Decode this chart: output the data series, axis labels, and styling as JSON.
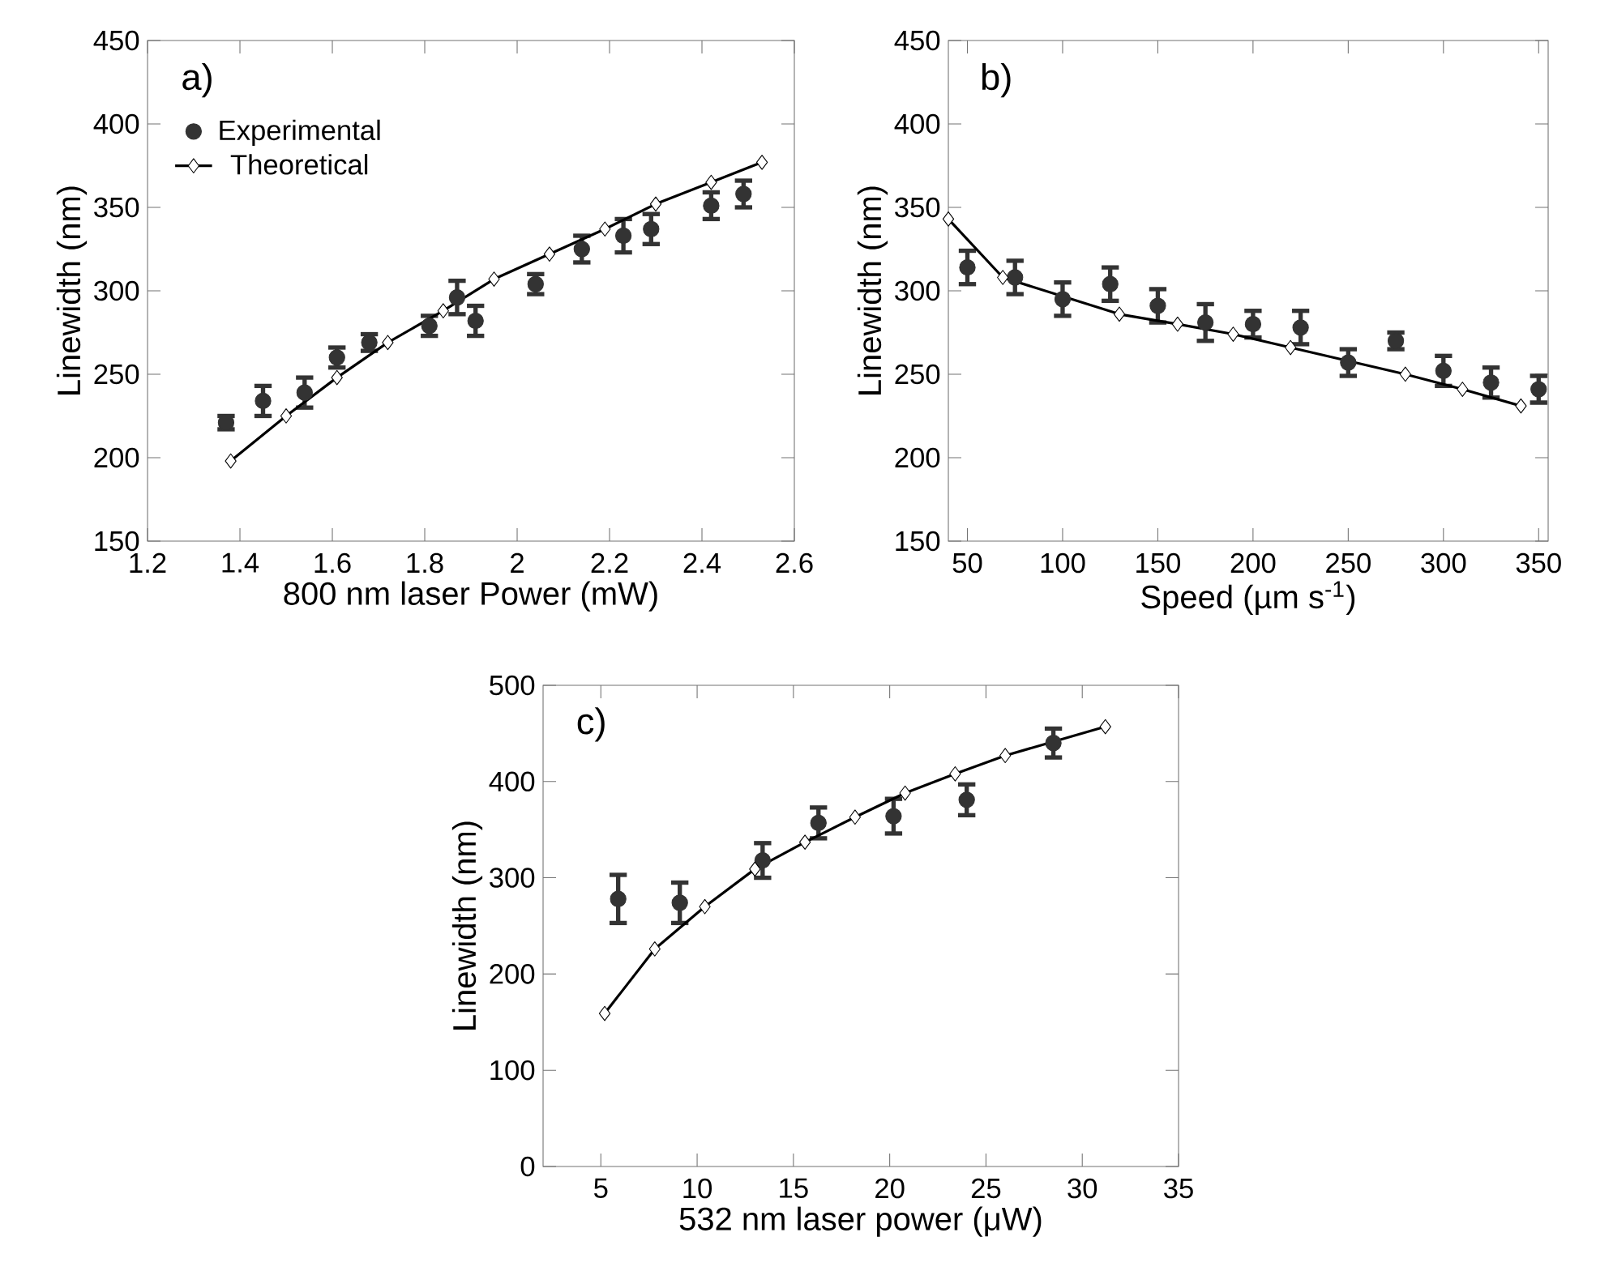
{
  "chart_data": [
    {
      "type": "scatter",
      "xlabel": "800 nm laser Power (mW)",
      "ylabel": "Linewidth (nm)",
      "annotations": [
        "a)"
      ],
      "xlim": [
        1.2,
        2.6
      ],
      "ylim": [
        150,
        450
      ],
      "xticks": [
        1.2,
        1.4,
        1.6,
        1.8,
        2,
        2.2,
        2.4,
        2.6
      ],
      "yticks": [
        150,
        200,
        250,
        300,
        350,
        400,
        450
      ],
      "legend": "top left",
      "series": [
        {
          "name": "Experimental",
          "marker": "circle",
          "color": "#333333",
          "x": [
            1.37,
            1.45,
            1.54,
            1.61,
            1.68,
            1.81,
            1.87,
            1.91,
            2.04,
            2.14,
            2.23,
            2.29,
            2.42,
            2.49
          ],
          "values": [
            221,
            234,
            239,
            260,
            269,
            279,
            296,
            282,
            304,
            325,
            333,
            337,
            351,
            358
          ],
          "errors": [
            4,
            9,
            9,
            6,
            5,
            6,
            10,
            9,
            6,
            8,
            10,
            9,
            8,
            8
          ]
        },
        {
          "name": "Theoretical",
          "type": "line",
          "marker": "diamond",
          "color": "#000000",
          "x": [
            1.38,
            1.5,
            1.61,
            1.72,
            1.84,
            1.95,
            2.07,
            2.19,
            2.3,
            2.42,
            2.53
          ],
          "values": [
            198,
            225,
            248,
            269,
            288,
            307,
            322,
            337,
            352,
            365,
            377
          ]
        }
      ]
    },
    {
      "type": "scatter",
      "xlabel": "Speed (µm s$^{-1}$)",
      "ylabel": "Linewidth (nm)",
      "annotations": [
        "b)"
      ],
      "xlim": [
        40,
        355
      ],
      "ylim": [
        150,
        450
      ],
      "xticks": [
        50,
        100,
        150,
        200,
        250,
        300,
        350
      ],
      "yticks": [
        150,
        200,
        250,
        300,
        350,
        400,
        450
      ],
      "series": [
        {
          "marker": "circle",
          "color": "#333333",
          "x": [
            50,
            75,
            100,
            125,
            150,
            175,
            200,
            225,
            250,
            275,
            300,
            325,
            350
          ],
          "values": [
            314,
            308,
            295,
            304,
            291,
            281,
            280,
            278,
            257,
            270,
            252,
            245,
            241
          ],
          "errors": [
            10,
            10,
            10,
            10,
            10,
            11,
            8,
            10,
            8,
            5,
            9,
            9,
            8
          ]
        },
        {
          "type": "line",
          "marker": "diamond",
          "color": "#000000",
          "x": [
            40,
            68.6,
            129.8,
            160.4,
            189.6,
            219.7,
            280,
            310,
            340.7
          ],
          "values": [
            343,
            308,
            286,
            280,
            274,
            266,
            250,
            241,
            231
          ]
        }
      ]
    },
    {
      "type": "scatter",
      "xlabel": "532 nm laser power (μW)",
      "ylabel": "Linewidth (nm)",
      "annotations": [
        "c)"
      ],
      "xlim": [
        2,
        35
      ],
      "ylim": [
        0,
        500
      ],
      "xticks": [
        5,
        10,
        15,
        20,
        25,
        30,
        35
      ],
      "yticks": [
        0,
        100,
        200,
        300,
        400,
        500
      ],
      "series": [
        {
          "marker": "circle",
          "color": "#333333",
          "x": [
            5.9,
            9.1,
            13.4,
            16.3,
            20.2,
            24.0,
            28.5
          ],
          "values": [
            278,
            274,
            318,
            357,
            364,
            381,
            440
          ],
          "errors": [
            25,
            21,
            18,
            16,
            18,
            16,
            15
          ]
        },
        {
          "type": "line",
          "marker": "diamond",
          "color": "#000000",
          "x": [
            5.2,
            7.8,
            10.4,
            13.0,
            15.6,
            18.2,
            20.8,
            23.4,
            26.0,
            31.2
          ],
          "values": [
            159,
            226,
            270,
            309,
            337,
            363,
            388,
            408,
            427,
            457
          ]
        }
      ]
    }
  ]
}
